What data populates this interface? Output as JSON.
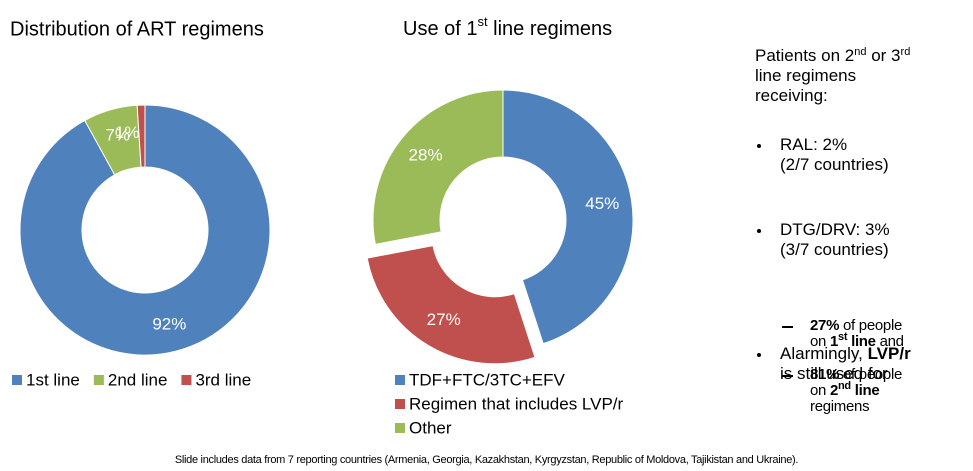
{
  "chart_data": [
    {
      "type": "donut",
      "title": "Distribution of ART regimens",
      "categories": [
        "1st line",
        "2nd line",
        "3rd line"
      ],
      "values": [
        92,
        7,
        1
      ],
      "value_labels": [
        "92%",
        "7%",
        "1%"
      ],
      "colors": [
        "#4f81bd",
        "#9bbb59",
        "#c0504d"
      ],
      "explode": [
        false,
        false,
        false
      ],
      "legend": "bottom-row"
    },
    {
      "type": "donut",
      "title": [
        "Use of 1",
        "st",
        " line regimens"
      ],
      "categories": [
        "TDF+FTC/3TC+EFV",
        "Regimen that includes LVP/r",
        "Other"
      ],
      "values": [
        45,
        27,
        28
      ],
      "value_labels": [
        "45%",
        "27%",
        "28%"
      ],
      "colors": [
        "#4f81bd",
        "#c0504d",
        "#9bbb59"
      ],
      "explode": [
        false,
        true,
        false
      ],
      "legend": "bottom-column"
    }
  ],
  "side_panel": {
    "heading": [
      "Patients on 2",
      "nd",
      " or 3",
      "rd",
      "line regimens",
      "receiving:"
    ],
    "bullets": [
      [
        "RAL: 2%",
        "(2/7 countries)"
      ],
      [
        "DTG/DRV: 3%",
        "(3/7 countries)"
      ]
    ],
    "alarm": [
      "Alarmingly,",
      "LVP/r",
      "is still used for"
    ],
    "sub": [
      [
        "27%",
        "of people",
        "on",
        "1",
        "st",
        " line",
        "and"
      ],
      [
        "81%",
        "of people",
        "on",
        "2",
        "nd",
        " line",
        "regimens"
      ]
    ]
  },
  "footnote": "Slide includes data from 7 reporting countries (Armenia, Georgia, Kazakhstan, Kyrgyzstan, Republic of Moldova, Tajikistan and Ukraine)."
}
